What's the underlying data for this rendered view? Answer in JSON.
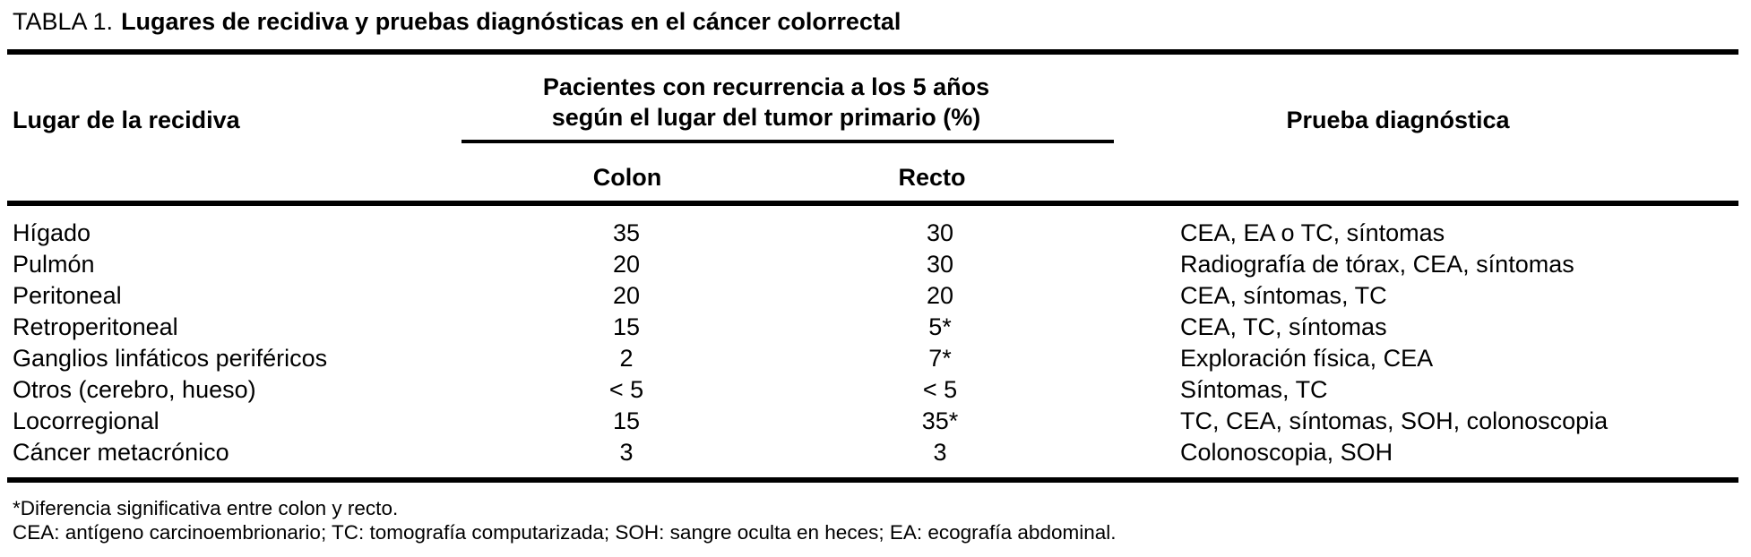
{
  "title": {
    "prefix": "TABLA 1.",
    "text": "Lugares de recidiva y pruebas diagnósticas en el cáncer colorrectal"
  },
  "headers": {
    "site": "Lugar de la recidiva",
    "span_line1": "Pacientes con recurrencia a los 5 años",
    "span_line2": "según el lugar del tumor primario (%)",
    "colon": "Colon",
    "recto": "Recto",
    "test": "Prueba diagnóstica"
  },
  "rows": [
    {
      "site": "Hígado",
      "colon": "35",
      "recto": "30",
      "test": "CEA, EA o TC, síntomas"
    },
    {
      "site": "Pulmón",
      "colon": "20",
      "recto": "30",
      "test": "Radiografía de tórax, CEA, síntomas"
    },
    {
      "site": "Peritoneal",
      "colon": "20",
      "recto": "20",
      "test": "CEA, síntomas, TC"
    },
    {
      "site": "Retroperitoneal",
      "colon": "15",
      "recto": "5*",
      "test": "CEA, TC, síntomas"
    },
    {
      "site": "Ganglios linfáticos periféricos",
      "colon": "2",
      "recto": "7*",
      "test": "Exploración física, CEA"
    },
    {
      "site": "Otros (cerebro, hueso)",
      "colon": "< 5",
      "recto": "< 5",
      "test": "Síntomas, TC"
    },
    {
      "site": "Locorregional",
      "colon": "15",
      "recto": "35*",
      "test": "TC, CEA, síntomas, SOH, colonoscopia"
    },
    {
      "site": "Cáncer metacrónico",
      "colon": "3",
      "recto": "3",
      "test": "Colonoscopia, SOH"
    }
  ],
  "footnotes": [
    "*Diferencia significativa entre colon y recto.",
    "CEA: antígeno carcinoembrionario; TC: tomografía computarizada; SOH: sangre oculta en heces; EA: ecografía abdominal."
  ],
  "colors": {
    "text": "#000000",
    "background": "#ffffff"
  }
}
